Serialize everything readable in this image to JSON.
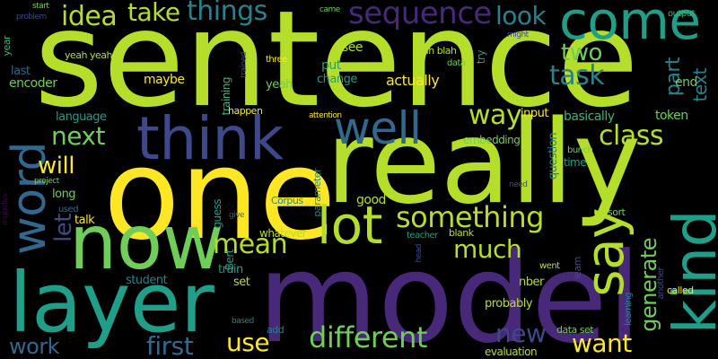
{
  "palette": {
    "yellow_green": "#b5de2b",
    "bright_yellow": "#fde725",
    "lime": "#6ece58",
    "green": "#35b779",
    "teal": "#1f9e89",
    "steel": "#26828e",
    "blue_steel": "#31688e",
    "indigo": "#3e4989",
    "deep_purple": "#482878",
    "dark_purple": "#440154"
  },
  "words": {
    "sentence": "sentence",
    "one": "one",
    "really": "really",
    "model": "model",
    "layer": "layer",
    "now": "now",
    "think": "think",
    "kind": "kind",
    "say": "say",
    "come": "come",
    "well": "well",
    "lot": "lot",
    "word": "word",
    "sequence": "sequence",
    "things": "things",
    "idea": "idea",
    "take": "take",
    "look": "look",
    "something": "something",
    "different": "different",
    "mean": "mean",
    "way": "way",
    "class": "class",
    "next": "next",
    "will": "will",
    "much": "much",
    "task": "task",
    "two": "two",
    "part": "part",
    "first": "first",
    "use": "use",
    "work": "work",
    "new": "new",
    "want": "want",
    "generate": "generate",
    "let": "let",
    "text": "text",
    "end": "end",
    "actually": "actually",
    "maybe": "maybe",
    "encoder": "encoder",
    "last": "last",
    "language": "language",
    "basically": "basically",
    "token": "token",
    "input": "input",
    "embedding": "embedding",
    "question": "question",
    "time": "time",
    "bunch": "bunch",
    "change": "change",
    "put": "put",
    "see": "see",
    "yeah": "yeah",
    "yeah_yeah": "yeah yeah",
    "three": "three",
    "trained": "trained",
    "training": "training",
    "happen": "happen",
    "attention": "attention",
    "problem": "problem",
    "start": "start",
    "year": "year",
    "came": "came",
    "blah_blah": "blah blah",
    "data": "data",
    "try": "try",
    "might": "might",
    "output": "output",
    "project": "project",
    "long": "long",
    "used": "used",
    "talk": "talk",
    "linguistics": "linguistics",
    "guess": "guess",
    "give": "give",
    "corpus": "Corpus",
    "parameter": "parameter",
    "good": "good",
    "need": "need",
    "sort": "sort",
    "blank": "blank",
    "teacher": "teacher",
    "head": "head",
    "learn": "learn",
    "learning": "learning",
    "another": "another",
    "called": "called",
    "whatever": "whatever",
    "bert": "Bert",
    "train": "train",
    "student": "student",
    "set": "set",
    "nber": "nber",
    "went": "went",
    "probably": "probably",
    "based": "based",
    "add": "add",
    "evaluation": "evaluation",
    "data_set": "data set"
  }
}
